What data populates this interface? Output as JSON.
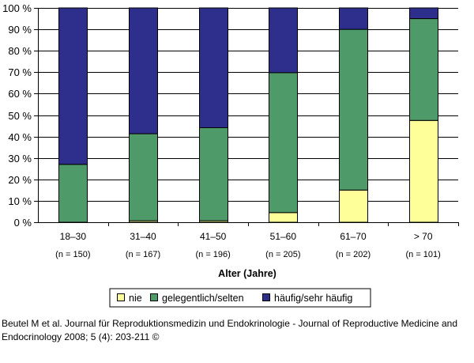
{
  "chart_data": {
    "type": "bar",
    "stacked": true,
    "percent": true,
    "categories": [
      "18–30",
      "31–40",
      "41–50",
      "51–60",
      "61–70",
      "> 70"
    ],
    "category_counts": [
      "(n = 150)",
      "(n = 167)",
      "(n = 196)",
      "(n = 205)",
      "(n = 202)",
      "(n = 101)"
    ],
    "series": [
      {
        "name": "nie",
        "color": "#ffff99",
        "values": [
          0,
          0.7,
          0.7,
          4.5,
          15,
          47.5
        ]
      },
      {
        "name": "gelegentlich/selten",
        "color": "#4f9a69",
        "values": [
          27,
          40.6,
          43.4,
          65.3,
          75,
          47.5
        ]
      },
      {
        "name": "häufig/sehr häufig",
        "color": "#2e2e8c",
        "values": [
          73,
          58.7,
          55.9,
          30.2,
          10,
          5
        ]
      }
    ],
    "y_ticks": [
      "0 %",
      "10 %",
      "20 %",
      "30 %",
      "40 %",
      "50 %",
      "60 %",
      "70 %",
      "80 %",
      "90 %",
      "100 %"
    ],
    "ylim": [
      0,
      100
    ],
    "xlabel": "Alter (Jahre)",
    "ylabel": "",
    "title": "",
    "grid": true,
    "legend_position": "bottom"
  },
  "caption": "Beutel M et al. Journal für Reproduktionsmedizin und Endokrinologie - Journal of Reproductive Medicine and Endocrinology 2008; 5 (4): 203-211 ©"
}
